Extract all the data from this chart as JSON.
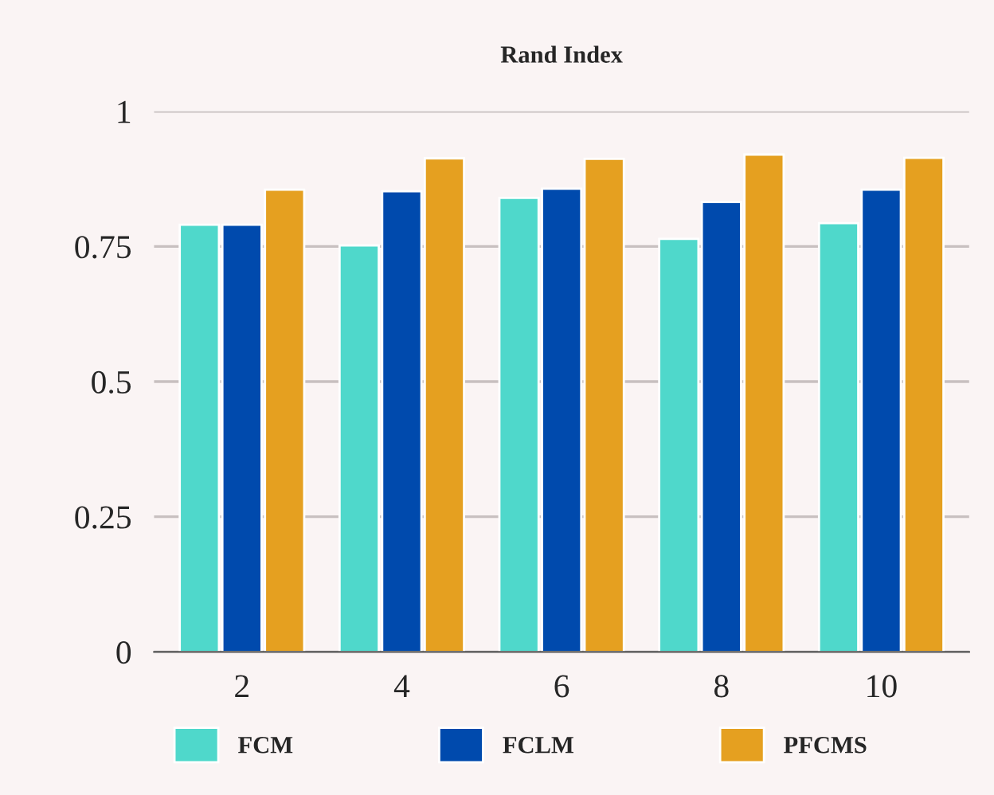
{
  "chart_data": {
    "type": "bar",
    "title": "Rand Index",
    "categories": [
      "2",
      "4",
      "6",
      "8",
      "10"
    ],
    "series": [
      {
        "name": "FCM",
        "color": "#4fd8cb",
        "values": [
          0.79,
          0.752,
          0.84,
          0.764,
          0.793
        ]
      },
      {
        "name": "FCLM",
        "color": "#004aad",
        "values": [
          0.79,
          0.852,
          0.857,
          0.832,
          0.855
        ]
      },
      {
        "name": "PFCMS",
        "color": "#e5a020",
        "values": [
          0.855,
          0.913,
          0.912,
          0.92,
          0.914
        ]
      }
    ],
    "ylim": [
      0,
      1
    ],
    "yticks": [
      0,
      {
        "value": 0.25,
        "label": "0.25"
      },
      {
        "value": 0.5,
        "label": "0.5"
      },
      {
        "value": 0.75,
        "label": "0.75"
      },
      1
    ],
    "grid": "y",
    "legend": "bottom"
  }
}
